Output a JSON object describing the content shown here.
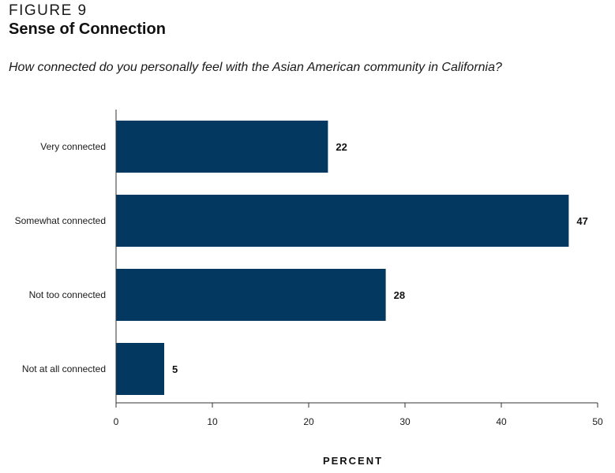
{
  "figure": {
    "label": "FIGURE 9",
    "title": "Sense of Connection",
    "question": "How connected do you personally feel with the Asian American community in California?"
  },
  "colors": {
    "bar": "#033860",
    "axis": "#333333"
  },
  "chart_data": {
    "type": "bar",
    "orientation": "horizontal",
    "title": "Sense of Connection",
    "categories": [
      "Very connected",
      "Somewhat connected",
      "Not too connected",
      "Not at all connected"
    ],
    "values": [
      22,
      47,
      28,
      5
    ],
    "data_labels": [
      "22",
      "47",
      "28",
      "5"
    ],
    "xlabel": "PERCENT",
    "ylabel": "",
    "xlim": [
      0,
      50
    ],
    "xticks": [
      0,
      10,
      20,
      30,
      40,
      50
    ],
    "grid": false,
    "legend": "none"
  }
}
